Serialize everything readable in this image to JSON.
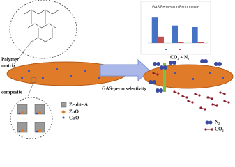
{
  "labels": {
    "polymer": "Polymer matrix",
    "composite": "composite",
    "arrow": "GAS-perm selectivity",
    "feed": "CO₂ + N₂"
  },
  "legend_left": [
    "Zeolite A",
    "ZnO",
    "CuO"
  ],
  "legend_right": [
    "N₂",
    "CO₂"
  ],
  "inset_chart": {
    "type": "bar",
    "title": "GAS Permeation Performance",
    "categories": [
      null,
      null,
      null
    ],
    "series": [
      {
        "color": "#4472c4",
        "values": [
          32,
          22,
          20
        ]
      },
      {
        "color": "#c0504d",
        "values": [
          8,
          1,
          1
        ]
      }
    ],
    "ylim": [
      0,
      40
    ]
  }
}
